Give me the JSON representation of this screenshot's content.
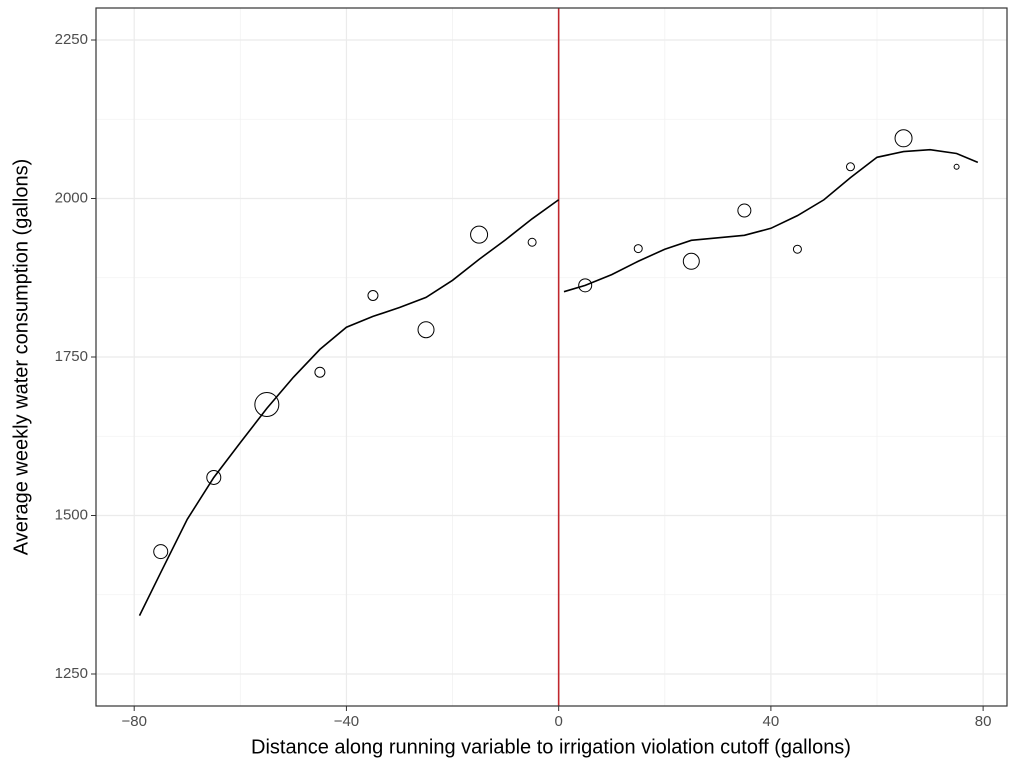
{
  "chart_data": {
    "type": "scatter",
    "x_label": "Distance along running variable to irrigation violation cutoff (gallons)",
    "y_label": "Average weekly water consumption (gallons)",
    "x": [
      -75,
      -65,
      -55,
      -45,
      -35,
      -25,
      -15,
      -5,
      5,
      15,
      25,
      35,
      45,
      55,
      65,
      75
    ],
    "values": [
      1443,
      1560,
      1675,
      1726,
      1847,
      1793,
      1943,
      1931,
      1863,
      1921,
      1901,
      1981,
      1920,
      2050,
      2095,
      2050
    ],
    "sizes": [
      7,
      7,
      12,
      5,
      5,
      8,
      8.5,
      4,
      6.5,
      4,
      8,
      6.5,
      4,
      4,
      8.5,
      2.5
    ],
    "fits": [
      {
        "x": [
          -79,
          -75,
          -70,
          -65,
          -60,
          -55,
          -50,
          -45,
          -40,
          -35,
          -30,
          -25,
          -20,
          -15,
          -10,
          -5,
          0
        ],
        "values": [
          1342,
          1410,
          1494,
          1560,
          1615,
          1669,
          1718,
          1762,
          1797,
          1814,
          1828,
          1844,
          1871,
          1904,
          1935,
          1968,
          1998
        ]
      },
      {
        "x": [
          1,
          5,
          10,
          15,
          20,
          25,
          30,
          35,
          40,
          45,
          50,
          55,
          60,
          65,
          70,
          75,
          79
        ],
        "values": [
          1853,
          1863,
          1880,
          1901,
          1920,
          1934,
          1938,
          1942,
          1953,
          1973,
          1998,
          2033,
          2065,
          2074,
          2077,
          2071,
          2057
        ]
      }
    ],
    "cutoff": 0,
    "cutoff_color": "#c0272d",
    "xlim": [
      -87.2,
      84.5
    ],
    "ylim": [
      1199.5,
      2300.5
    ],
    "xticks": [
      {
        "value": -80,
        "label": "−80"
      },
      {
        "value": -40,
        "label": "−40"
      },
      0,
      40,
      80
    ],
    "yticks": [
      1250,
      1500,
      1750,
      2000,
      2250
    ],
    "xminor": [
      -60,
      -20,
      20,
      60
    ],
    "yminor": [
      1375,
      1625,
      1875,
      2125
    ],
    "grid": true
  }
}
